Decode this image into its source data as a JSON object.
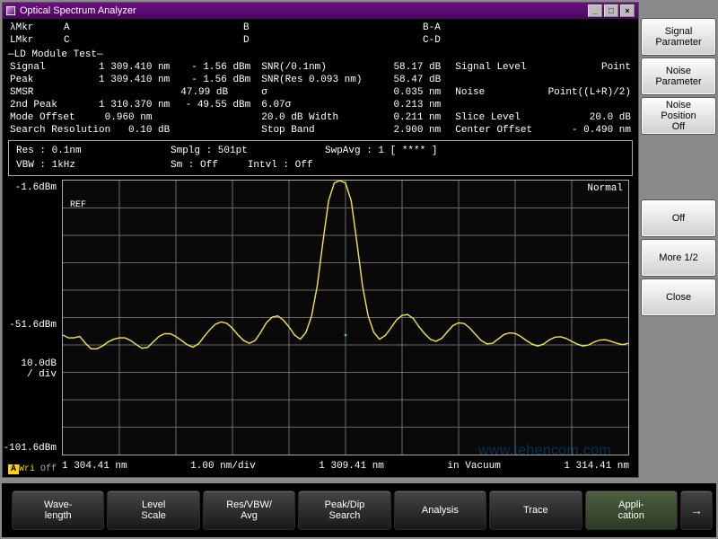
{
  "window": {
    "title": "Optical Spectrum Analyzer",
    "min": "_",
    "max": "□",
    "close": "×"
  },
  "markers": {
    "lmkrLbl": "λMkr",
    "lA": "A",
    "lB": "B",
    "lBA": "B-A",
    "LmkrLbl": "LMkr",
    "lC": "C",
    "lD": "D",
    "lCD": "C-D"
  },
  "testName": "—LD Module Test—",
  "rows": {
    "signal": {
      "lbl": "Signal",
      "wl": "1 309.410 nm",
      "pwr": "-   1.56 dBm",
      "l2": "SNR(/0.1nm)",
      "v2": "58.17 dB",
      "l3": "Signal Level",
      "v3": "Point"
    },
    "peak": {
      "lbl": "Peak",
      "wl": "1 309.410 nm",
      "pwr": "-   1.56 dBm",
      "l2": "SNR(Res    0.093 nm)",
      "v2": "58.47 dB"
    },
    "smsr": {
      "lbl": "SMSR",
      "v1": "47.99 dB",
      "l2": "σ",
      "v2": "0.035 nm",
      "l3": "Noise",
      "v3": "Point((L+R)/2)"
    },
    "peak2": {
      "lbl": "2nd  Peak",
      "wl": "1 310.370 nm",
      "pwr": "-  49.55 dBm",
      "l2": "6.07σ",
      "v2": "0.213 nm"
    },
    "mode": {
      "lbl": "Mode Offset",
      "v1": "0.960 nm",
      "l2": "20.0  dB Width",
      "v2": "0.211 nm",
      "l3": "Slice Level",
      "v3": "20.0  dB"
    },
    "sres": {
      "lbl": "Search Resolution",
      "v1": "0.10   dB",
      "l2": "Stop Band",
      "v2": "2.900 nm",
      "l3": "Center Offset",
      "v3": "- 0.490 nm"
    }
  },
  "status": {
    "res": "Res :  0.1nm",
    "smplg": "Smplg :   501pt",
    "swp": "SwpAvg :      1 [   **** ]",
    "vbw": "VBW :    1kHz",
    "sm": "Sm :    Off",
    "intvl": "Intvl :    Off"
  },
  "chart": {
    "mode": "Normal",
    "ref": "REF",
    "ylabels": {
      "top": "-1.6dBm",
      "mid": "-51.6dBm",
      "div": "10.0dB\n/ div",
      "bot": "-101.6dBm"
    },
    "ylim": [
      -101.6,
      -1.6
    ],
    "xdim": 10,
    "trace": [
      -58,
      -59,
      -59,
      -58.5,
      -61,
      -63,
      -63,
      -62,
      -60.5,
      -59.5,
      -59,
      -59,
      -60,
      -61.5,
      -62.8,
      -62.5,
      -60.5,
      -58.5,
      -57.5,
      -57.5,
      -58.5,
      -60,
      -61.5,
      -62.4,
      -61.2,
      -58.5,
      -56,
      -54,
      -53.2,
      -53.7,
      -55.5,
      -58,
      -60,
      -61,
      -60,
      -57,
      -53.5,
      -51.5,
      -51,
      -52.5,
      -55,
      -58,
      -59.5,
      -57,
      -51,
      -40,
      -24,
      -9,
      -2.5,
      -1.6,
      -2.5,
      -9,
      -24,
      -40,
      -51,
      -57,
      -59.5,
      -58.2,
      -55.5,
      -52.5,
      -50.8,
      -50.5,
      -52,
      -55,
      -57.5,
      -59.5,
      -60.3,
      -59.2,
      -56.8,
      -54.5,
      -53.5,
      -53.8,
      -55.5,
      -57.8,
      -60,
      -61.2,
      -61,
      -59.4,
      -57.8,
      -57.2,
      -57.4,
      -58.5,
      -60,
      -61.3,
      -62,
      -61.3,
      -59.8,
      -58.8,
      -58.6,
      -59.2,
      -60.3,
      -61.3,
      -62,
      -61.6,
      -60.5,
      -59.8,
      -59.7,
      -60.3,
      -61,
      -61.5,
      -61
    ],
    "trace_color": "#f5e846",
    "grid_color": "#6b6b6b",
    "xlabels": {
      "l": "1 304.41 nm",
      "div": "1.00 nm/div",
      "c": "1 309.41 nm",
      "vac": "in Vacuum",
      "r": "1 314.41 nm"
    }
  },
  "watermark": "www.tehencom.com",
  "writag": {
    "a": "A",
    "w": "Wri",
    "o": "Off"
  },
  "side": [
    {
      "label": "Signal\nParameter",
      "sel": false
    },
    {
      "label": "Noise\nParameter",
      "sel": false
    },
    {
      "label": "Noise\nPosition\nOff",
      "sel": false
    },
    {
      "label": "__gap"
    },
    {
      "label": "Off",
      "sel": false
    },
    {
      "label": "More 1/2",
      "sel": false
    },
    {
      "label": "Close",
      "sel": false
    }
  ],
  "footer": [
    {
      "label": "Wave-\nlength",
      "sel": false
    },
    {
      "label": "Level\nScale",
      "sel": false
    },
    {
      "label": "Res/VBW/\nAvg",
      "sel": false
    },
    {
      "label": "Peak/Dip\nSearch",
      "sel": false
    },
    {
      "label": "Analysis",
      "sel": false
    },
    {
      "label": "Trace",
      "sel": false
    },
    {
      "label": "Appli-\ncation",
      "sel": true
    }
  ],
  "arrow": "→"
}
